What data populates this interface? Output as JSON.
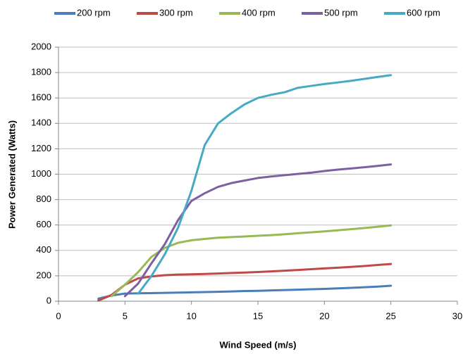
{
  "chart_data": {
    "type": "line",
    "x_label": "Wind Speed (m/s)",
    "y_label": "Power Generated (Watts)",
    "x": [
      3,
      4,
      5,
      6,
      7,
      8,
      9,
      10,
      11,
      12,
      13,
      14,
      15,
      16,
      17,
      18,
      19,
      20,
      21,
      22,
      23,
      24,
      25
    ],
    "series": [
      {
        "name": "200 rpm",
        "color": "#4a7ebb",
        "values": [
          20,
          45,
          60,
          62,
          64,
          66,
          68,
          70,
          72,
          74,
          77,
          80,
          82,
          85,
          88,
          91,
          94,
          97,
          101,
          105,
          110,
          115,
          122
        ]
      },
      {
        "name": "300 rpm",
        "color": "#be4b48",
        "values": [
          5,
          50,
          130,
          180,
          195,
          205,
          210,
          212,
          215,
          218,
          222,
          226,
          230,
          235,
          240,
          246,
          252,
          258,
          264,
          270,
          277,
          285,
          293
        ]
      },
      {
        "name": "400 rpm",
        "color": "#98b954",
        "values": [
          null,
          40,
          130,
          230,
          350,
          420,
          460,
          480,
          490,
          500,
          505,
          510,
          515,
          520,
          527,
          535,
          542,
          550,
          558,
          567,
          576,
          586,
          597
        ]
      },
      {
        "name": "500 rpm",
        "color": "#7d60a0",
        "values": [
          null,
          null,
          40,
          140,
          300,
          450,
          640,
          790,
          850,
          900,
          930,
          950,
          970,
          982,
          992,
          1002,
          1012,
          1025,
          1036,
          1045,
          1055,
          1065,
          1077
        ]
      },
      {
        "name": "600 rpm",
        "color": "#46aac5",
        "values": [
          null,
          null,
          null,
          60,
          200,
          370,
          580,
          870,
          1230,
          1400,
          1480,
          1550,
          1600,
          1625,
          1645,
          1680,
          1695,
          1710,
          1722,
          1735,
          1750,
          1765,
          1780
        ]
      }
    ],
    "xlim": [
      0,
      30
    ],
    "xticks": [
      0,
      5,
      10,
      15,
      20,
      25,
      30
    ],
    "ylim": [
      0,
      2000
    ],
    "yticks": [
      0,
      200,
      400,
      600,
      800,
      1000,
      1200,
      1400,
      1600,
      1800,
      2000
    ],
    "grid": true,
    "legend": "top"
  }
}
